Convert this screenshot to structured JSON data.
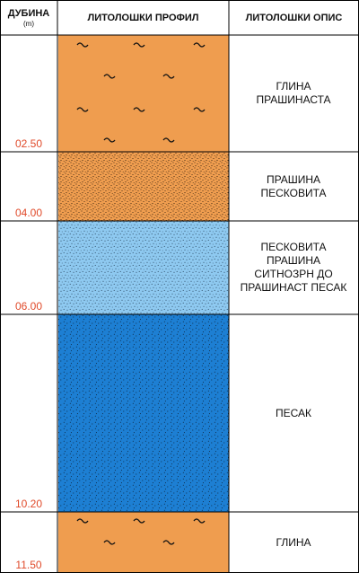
{
  "headers": {
    "depth": "ДУБИНА",
    "depth_unit": "(m)",
    "profile": "ЛИТОЛОШКИ ПРОФИЛ",
    "description": "ЛИТОЛОШКИ ОПИС"
  },
  "layers": [
    {
      "bottom": "02.50",
      "description": [
        "ГЛИНА",
        "ПРАШИНАСТА"
      ],
      "fill": "clay",
      "color": "#ef9d4f"
    },
    {
      "bottom": "04.00",
      "description": [
        "ПРАШИНА",
        "ПЕСКОВИТА"
      ],
      "fill": "silt",
      "color": "#ef9d4f"
    },
    {
      "bottom": "06.00",
      "description": [
        "ПЕСКОВИТА",
        "ПРАШИНА",
        "СИТНОЗРН ДО",
        "ПРАШИНАСТ ПЕСАК"
      ],
      "fill": "sandy",
      "color": "#8ec9f0"
    },
    {
      "bottom": "10.20",
      "description": [
        "ПЕСАК"
      ],
      "fill": "sand",
      "color": "#1d7fd3"
    },
    {
      "bottom": "11.50",
      "description": [
        "ГЛИНА"
      ],
      "fill": "clay",
      "color": "#ef9d4f"
    }
  ],
  "colors": {
    "depth_label": "#e04a2a",
    "border": "#000000"
  }
}
